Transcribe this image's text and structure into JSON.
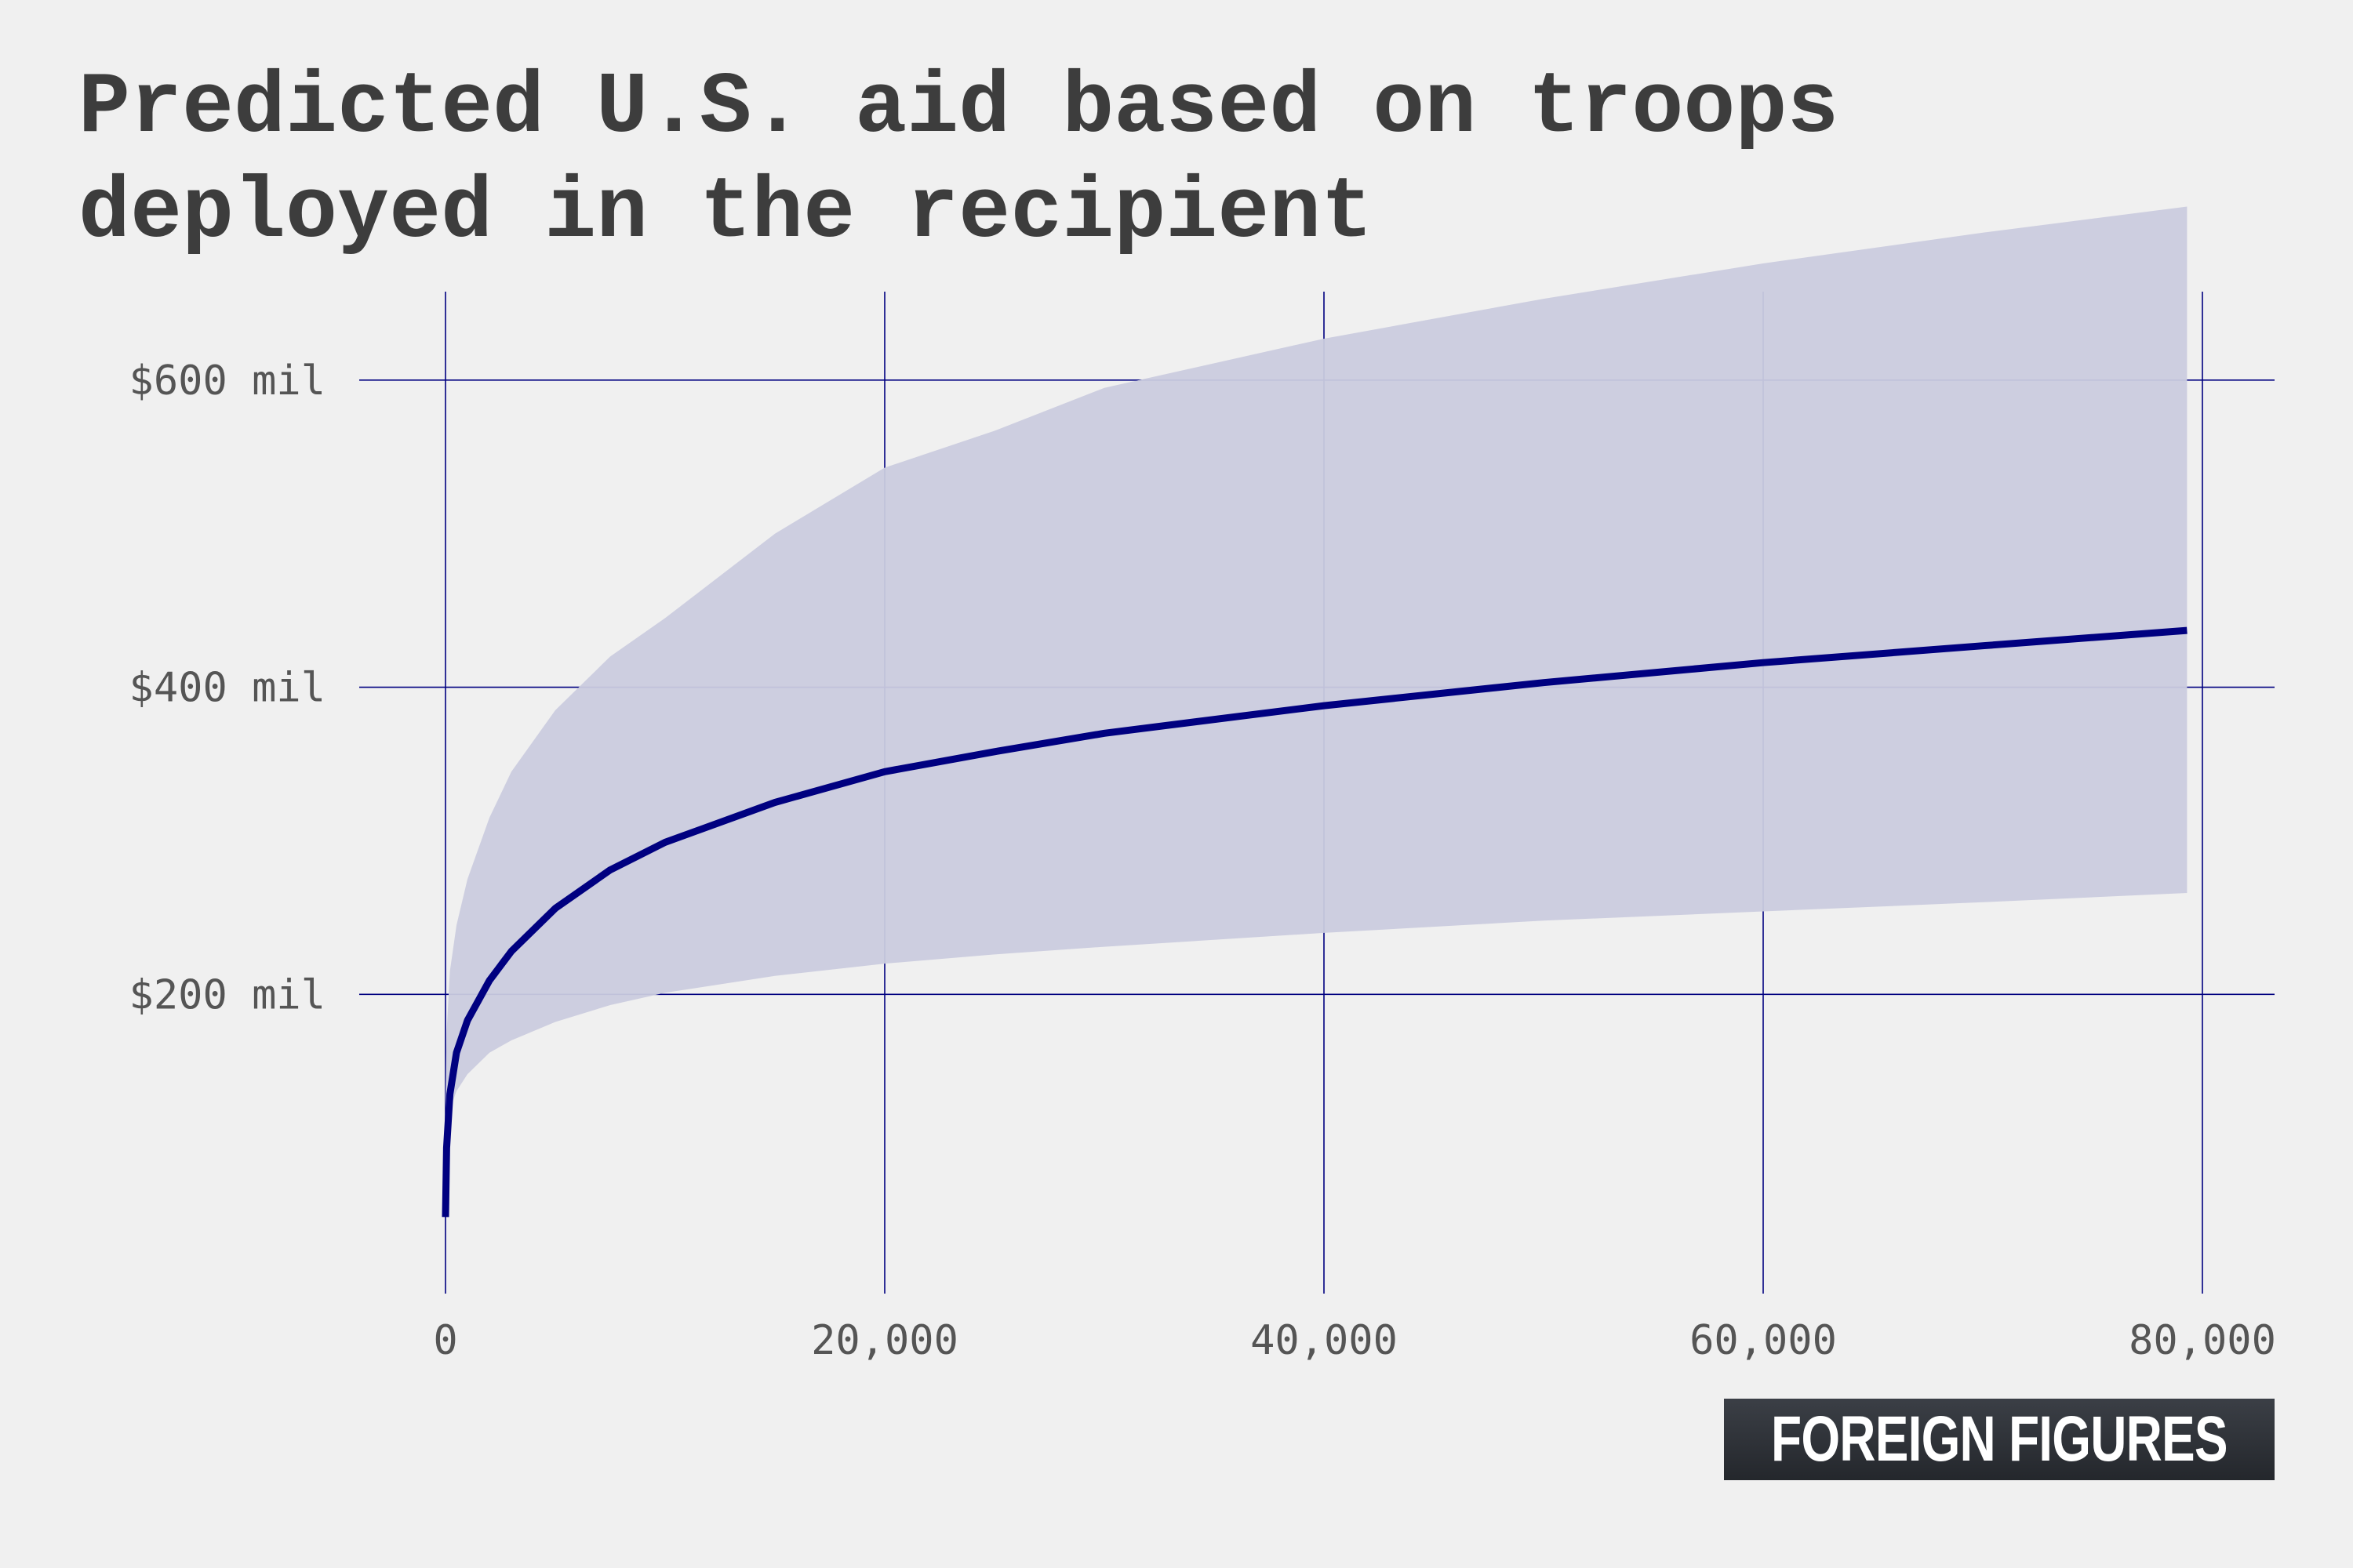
{
  "title": "Predicted U.S. aid based on troops deployed in the recipient",
  "brand": "FOREIGN FIGURES",
  "colors": {
    "background": "#f0f0f0",
    "title": "#3d3d3d",
    "line": "#000080",
    "band": "#cacbde",
    "grid": "#000080",
    "tick_text": "#555555"
  },
  "chart_data": {
    "type": "line",
    "title": "Predicted U.S. aid based on troops deployed in the recipient",
    "xlabel": "",
    "ylabel": "",
    "xlim": [
      0,
      80000
    ],
    "ylim": [
      0,
      700
    ],
    "grid": true,
    "x_ticks": [
      0,
      20000,
      40000,
      60000,
      80000
    ],
    "x_tick_labels": [
      "0",
      "20,000",
      "40,000",
      "60,000",
      "80,000"
    ],
    "y_ticks": [
      200,
      400,
      600
    ],
    "y_tick_labels": [
      "$200 mil",
      "$400 mil",
      "$600 mil"
    ],
    "series": [
      {
        "role": "prediction",
        "x": [
          0,
          50,
          200,
          500,
          1000,
          2000,
          3000,
          5000,
          7500,
          10000,
          15000,
          20000,
          25000,
          30000,
          40000,
          50000,
          60000,
          70000,
          79300
        ],
        "y": [
          55,
          100,
          135,
          162,
          183,
          209,
          228,
          256,
          281,
          299,
          325,
          345,
          358,
          370,
          388,
          403,
          416,
          427,
          437
        ]
      },
      {
        "role": "confidence-interval",
        "x": [
          0,
          50,
          200,
          500,
          1000,
          2000,
          3000,
          5000,
          7500,
          10000,
          15000,
          20000,
          25000,
          30000,
          40000,
          50000,
          60000,
          70000,
          79300
        ],
        "lower": [
          100,
          112,
          125,
          137,
          148,
          162,
          170,
          182,
          193,
          201,
          212,
          220,
          226,
          231,
          240,
          248,
          254,
          260,
          266
        ],
        "upper": [
          130,
          175,
          215,
          245,
          275,
          315,
          345,
          385,
          420,
          445,
          500,
          543,
          567,
          595,
          627,
          653,
          676,
          696,
          713
        ]
      }
    ]
  }
}
